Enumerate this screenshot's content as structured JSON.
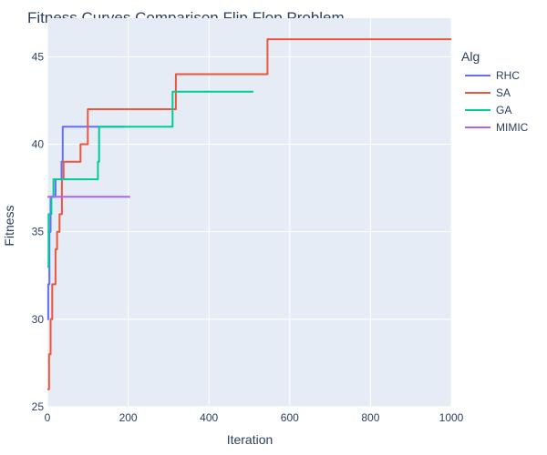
{
  "chart_data": {
    "type": "line",
    "title": "Fitness Curves Comparison Flip Flop Problem",
    "xlabel": "Iteration",
    "ylabel": "Fitness",
    "xlim": [
      0,
      1000
    ],
    "ylim": [
      25,
      47.2
    ],
    "xticks": [
      0,
      200,
      400,
      600,
      800,
      1000
    ],
    "yticks": [
      25,
      30,
      35,
      40,
      45
    ],
    "grid": true,
    "legend": {
      "title": "Alg",
      "placement": "right"
    },
    "series": [
      {
        "name": "RHC",
        "color": "#636efa",
        "points": [
          [
            0,
            30
          ],
          [
            2,
            30
          ],
          [
            2,
            32
          ],
          [
            5,
            32
          ],
          [
            5,
            35
          ],
          [
            8,
            35
          ],
          [
            8,
            37
          ],
          [
            20,
            37
          ],
          [
            20,
            38
          ],
          [
            35,
            38
          ],
          [
            35,
            39
          ],
          [
            38,
            39
          ],
          [
            38,
            41
          ],
          [
            190,
            41
          ]
        ]
      },
      {
        "name": "SA",
        "color": "#ef553b",
        "points": [
          [
            0,
            26
          ],
          [
            4,
            26
          ],
          [
            4,
            28
          ],
          [
            8,
            28
          ],
          [
            8,
            30
          ],
          [
            12,
            30
          ],
          [
            12,
            32
          ],
          [
            20,
            32
          ],
          [
            20,
            34
          ],
          [
            24,
            34
          ],
          [
            24,
            35
          ],
          [
            30,
            35
          ],
          [
            30,
            36
          ],
          [
            36,
            36
          ],
          [
            36,
            38
          ],
          [
            40,
            38
          ],
          [
            40,
            39
          ],
          [
            82,
            39
          ],
          [
            82,
            40
          ],
          [
            100,
            40
          ],
          [
            100,
            42
          ],
          [
            318,
            42
          ],
          [
            318,
            44
          ],
          [
            545,
            44
          ],
          [
            545,
            46
          ],
          [
            1000,
            46
          ]
        ]
      },
      {
        "name": "GA",
        "color": "#00cc96",
        "points": [
          [
            0,
            33
          ],
          [
            3,
            33
          ],
          [
            3,
            36
          ],
          [
            10,
            36
          ],
          [
            10,
            37
          ],
          [
            15,
            37
          ],
          [
            15,
            38
          ],
          [
            125,
            38
          ],
          [
            125,
            39
          ],
          [
            128,
            39
          ],
          [
            128,
            41
          ],
          [
            310,
            41
          ],
          [
            310,
            43
          ],
          [
            510,
            43
          ]
        ]
      },
      {
        "name": "MIMIC",
        "color": "#ab63fa",
        "points": [
          [
            0,
            37
          ],
          [
            205,
            37
          ]
        ]
      }
    ]
  }
}
